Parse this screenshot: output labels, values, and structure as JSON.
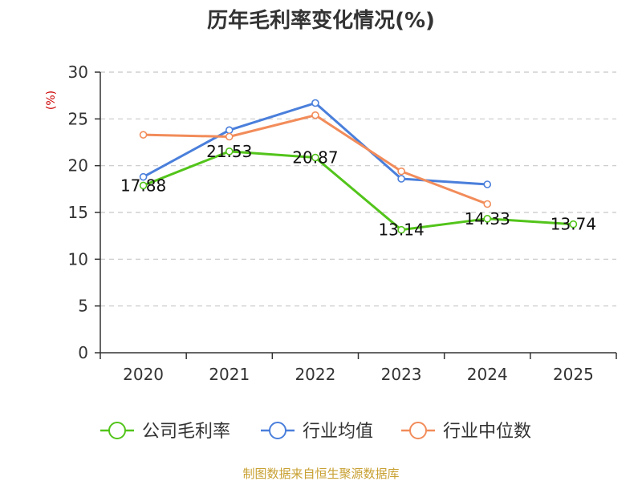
{
  "chart_data": {
    "type": "line",
    "title": "历年毛利率变化情况(%)",
    "ylabel": "(%)",
    "xlabel": "",
    "categories": [
      "2020",
      "2021",
      "2022",
      "2023",
      "2024",
      "2025"
    ],
    "ylim": [
      0,
      30
    ],
    "yticks": [
      0,
      5,
      10,
      15,
      20,
      25,
      30
    ],
    "grid": true,
    "legend_position": "bottom",
    "series": [
      {
        "name": "公司毛利率",
        "color": "#52c41a",
        "values": [
          17.88,
          21.53,
          20.87,
          13.14,
          14.33,
          13.74
        ],
        "labels": [
          "17.88",
          "21.53",
          "20.87",
          "13.14",
          "14.33",
          "13.74"
        ]
      },
      {
        "name": "行业均值",
        "color": "#4a7fdb",
        "values": [
          18.8,
          23.8,
          26.7,
          18.6,
          18.0,
          null
        ]
      },
      {
        "name": "行业中位数",
        "color": "#f28c5a",
        "values": [
          23.3,
          23.1,
          25.4,
          19.4,
          15.9,
          null
        ]
      }
    ],
    "source": "制图数据来自恒生聚源数据库"
  }
}
